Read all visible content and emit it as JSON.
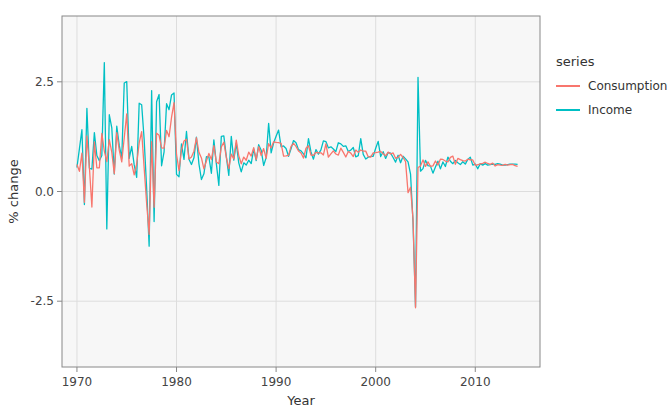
{
  "chart_data": {
    "type": "line",
    "xlabel": "Year",
    "ylabel": "% change",
    "legend_title": "series",
    "legend": "right",
    "grid": true,
    "xlim": [
      1968.5,
      2016.5
    ],
    "xticks": [
      1970,
      1980,
      1990,
      2000,
      2010
    ],
    "ylim": [
      -4.0,
      4.0
    ],
    "yticks": [
      -2.5,
      {
        "value": 0.0,
        "label": "0.0"
      },
      2.5
    ],
    "x": [
      1970,
      1970.25,
      1970.5,
      1970.75,
      1971,
      1971.25,
      1971.5,
      1971.75,
      1972,
      1972.25,
      1972.5,
      1972.75,
      1973,
      1973.25,
      1973.5,
      1973.75,
      1974,
      1974.25,
      1974.5,
      1974.75,
      1975,
      1975.25,
      1975.5,
      1975.75,
      1976,
      1976.25,
      1976.5,
      1976.75,
      1977,
      1977.25,
      1977.5,
      1977.75,
      1978,
      1978.25,
      1978.5,
      1978.75,
      1979,
      1979.25,
      1979.5,
      1979.75,
      1980,
      1980.25,
      1980.5,
      1980.75,
      1981,
      1981.25,
      1981.5,
      1981.75,
      1982,
      1982.25,
      1982.5,
      1982.75,
      1983,
      1983.25,
      1983.5,
      1983.75,
      1984,
      1984.25,
      1984.5,
      1984.75,
      1985,
      1985.25,
      1985.5,
      1985.75,
      1986,
      1986.25,
      1986.5,
      1986.75,
      1987,
      1987.25,
      1987.5,
      1987.75,
      1988,
      1988.25,
      1988.5,
      1988.75,
      1989,
      1989.25,
      1989.5,
      1989.75,
      1990,
      1990.25,
      1990.5,
      1990.75,
      1991,
      1991.25,
      1991.5,
      1991.75,
      1992,
      1992.25,
      1992.5,
      1992.75,
      1993,
      1993.25,
      1993.5,
      1993.75,
      1994,
      1994.25,
      1994.5,
      1994.75,
      1995,
      1995.25,
      1995.5,
      1995.75,
      1996,
      1996.25,
      1996.5,
      1996.75,
      1997,
      1997.25,
      1997.5,
      1997.75,
      1998,
      1998.25,
      1998.5,
      1998.75,
      1999,
      1999.25,
      1999.5,
      1999.75,
      2000,
      2000.25,
      2000.5,
      2000.75,
      2001,
      2001.25,
      2001.5,
      2001.75,
      2002,
      2002.25,
      2002.5,
      2002.75,
      2003,
      2003.25,
      2003.5,
      2003.75,
      2004,
      2004.25,
      2004.5,
      2004.75,
      2005,
      2005.25,
      2005.5,
      2005.75,
      2006,
      2006.25,
      2006.5,
      2006.75,
      2007,
      2007.25,
      2007.5,
      2007.75,
      2008,
      2008.25,
      2008.5,
      2008.75,
      2009,
      2009.25,
      2009.5,
      2009.75,
      2010,
      2010.25,
      2010.5,
      2010.75,
      2011,
      2011.25,
      2011.5,
      2011.75,
      2012,
      2012.25,
      2012.5,
      2012.75,
      2013,
      2013.25,
      2013.5,
      2013.75,
      2014,
      2014.25
    ],
    "series": [
      {
        "name": "Consumption",
        "color": "#F8766D",
        "values": [
          0.6159862,
          0.4603757,
          0.8761147,
          -0.2460815,
          1.2659438,
          0.5577259,
          -0.3548922,
          1.1283492,
          0.5406289,
          0.5405944,
          1.3228588,
          0.9207797,
          0.6792817,
          1.182304,
          0.8960975,
          0.4062649,
          1.3413869,
          0.9423979,
          0.6742764,
          1.2244155,
          1.7698506,
          0.5782688,
          0.6356614,
          0.3770776,
          0.6270034,
          1.1058854,
          1.3650699,
          0.5343936,
          -0.2727992,
          -0.9784029,
          1.1343087,
          -0.3584764,
          1.3303408,
          1.2818741,
          0.9961451,
          0.986678,
          1.392951,
          1.2483752,
          1.6901469,
          2.0272002,
          0.8445513,
          0.4763048,
          0.9516831,
          1.150944,
          1.1912553,
          0.741392,
          0.7851649,
          0.9184085,
          1.2253782,
          0.8935682,
          0.7655484,
          0.5174051,
          0.6937777,
          0.8669948,
          0.73016,
          1.0462148,
          0.6713041,
          0.6361007,
          1.018034,
          1.1238803,
          0.7817484,
          0.5193516,
          0.8510527,
          0.7420376,
          1.1711497,
          0.8182316,
          0.6317095,
          0.7851547,
          0.7119781,
          0.8972946,
          0.80791,
          1.0002278,
          0.7274126,
          1.02478,
          0.8197843,
          0.9783882,
          0.7563133,
          1.0890266,
          0.9931049,
          1.1327046,
          1.1196791,
          1.1149186,
          1.0968625,
          0.8081213,
          0.8103628,
          0.8228093,
          1.0293118,
          1.096964,
          1.0283133,
          0.9229617,
          0.8789,
          0.7622012,
          0.9862049,
          1.0424107,
          0.8291124,
          0.8265897,
          0.892909,
          0.8834274,
          0.8818215,
          0.8333478,
          1.0841234,
          0.7849618,
          0.8572671,
          0.9261428,
          0.8554151,
          0.8299651,
          0.9879817,
          0.890894,
          0.7862398,
          0.9118699,
          0.8748869,
          0.7973285,
          0.9444375,
          0.8912929,
          0.9460499,
          0.9180779,
          0.9200218,
          0.7930424,
          0.7821823,
          0.8810143,
          0.8848754,
          0.89607,
          0.914904,
          0.8622413,
          0.814268,
          0.89757,
          0.8550044,
          0.8793741,
          0.7584093,
          0.7800869,
          0.8467001,
          0.77448,
          0.6811714,
          -0.0268063,
          0.0963028,
          -0.6354045,
          -2.6510358,
          0.5473476,
          0.5781988,
          0.7206714,
          0.5714281,
          0.675876,
          0.5752046,
          0.584092,
          0.694887,
          0.603166,
          0.73476,
          0.7302543,
          0.6945427,
          0.672672,
          0.7766413,
          0.8073641,
          0.620934,
          0.754243,
          0.7254413,
          0.7040069,
          0.6942018,
          0.736342,
          0.721372,
          0.720216,
          0.5977508,
          0.610026,
          0.630713,
          0.642478,
          0.6674547,
          0.638583,
          0.61868,
          0.647937,
          0.581485,
          0.612514,
          0.602369,
          0.594891,
          0.619802,
          0.598711,
          0.612915,
          0.617288,
          0.587237,
          0.570392
        ]
      },
      {
        "name": "Income",
        "color": "#00BFC4",
        "values": [
          0.5477756,
          0.9782397,
          1.4075225,
          -0.2965435,
          1.8965875,
          0.5301916,
          0.5090411,
          1.3432595,
          0.8190688,
          0.6989027,
          0.8218652,
          2.9378729,
          -0.8533519,
          1.7487248,
          1.4516944,
          0.3988683,
          1.4879466,
          1.049856,
          0.7602834,
          2.4740882,
          2.504498,
          0.7551524,
          1.026275,
          0.605258,
          0.324757,
          2.0127553,
          1.9773,
          1.1842978,
          0.0705584,
          -1.2448025,
          2.3000965,
          -0.68404,
          2.044904,
          2.2099706,
          0.587036,
          0.901138,
          2.000954,
          1.864071,
          2.200996,
          2.24491,
          0.390966,
          0.33607,
          1.085075,
          0.732049,
          1.368093,
          0.735049,
          0.61516,
          0.7681,
          1.239077,
          0.630064,
          0.273067,
          0.402034,
          0.792067,
          0.788097,
          0.416034,
          1.17711,
          0.636095,
          0.140042,
          1.258156,
          1.267197,
          0.794127,
          0.367082,
          1.257214,
          0.7131,
          1.102157,
          0.654135,
          0.44911,
          0.653134,
          0.603146,
          0.713147,
          0.637136,
          0.971204,
          0.70213,
          1.066203,
          0.941198,
          0.593187,
          0.771208,
          1.553314,
          0.880196,
          1.10522,
          1.261278,
          1.400304,
          1.02026,
          1.038258,
          0.979251,
          0.803221,
          0.975249,
          1.161313,
          1.110312,
          0.953296,
          0.924294,
          0.85628,
          0.768288,
          1.206374,
          0.901312,
          0.736291,
          0.956296,
          0.851293,
          0.947298,
          1.154342,
          1.139339,
          0.994315,
          1.017322,
          0.96931,
          0.908303,
          1.110336,
          1.08633,
          1.028316,
          1.040318,
          0.912301,
          0.942298,
          1.003309,
          0.78828,
          0.818285,
          1.204364,
          0.847284,
          0.739282,
          0.781289,
          0.801292,
          0.80029,
          0.985312,
          1.142359,
          0.796283,
          0.9073,
          0.753281,
          0.887296,
          0.875294,
          0.775287,
          0.669273,
          0.82529,
          0.656276,
          0.80329,
          0.744284,
          0.675276,
          0.39817,
          -0.70128,
          -2.626395,
          2.603406,
          0.462158,
          0.522167,
          0.711203,
          0.590181,
          0.578177,
          0.418154,
          0.558173,
          0.69019,
          0.515167,
          0.673185,
          0.569175,
          0.7852,
          0.691188,
          0.634181,
          0.7062,
          0.656188,
          0.613178,
          0.677188,
          0.625177,
          0.731201,
          0.783206,
          0.601176,
          0.62618,
          0.517166,
          0.63518,
          0.600178,
          0.63518,
          0.600178,
          0.614179,
          0.622179,
          0.618179,
          0.637181,
          0.622179,
          0.603177,
          0.600178,
          0.614179,
          0.622179,
          0.62618,
          0.622179,
          0.618179
        ]
      }
    ]
  }
}
